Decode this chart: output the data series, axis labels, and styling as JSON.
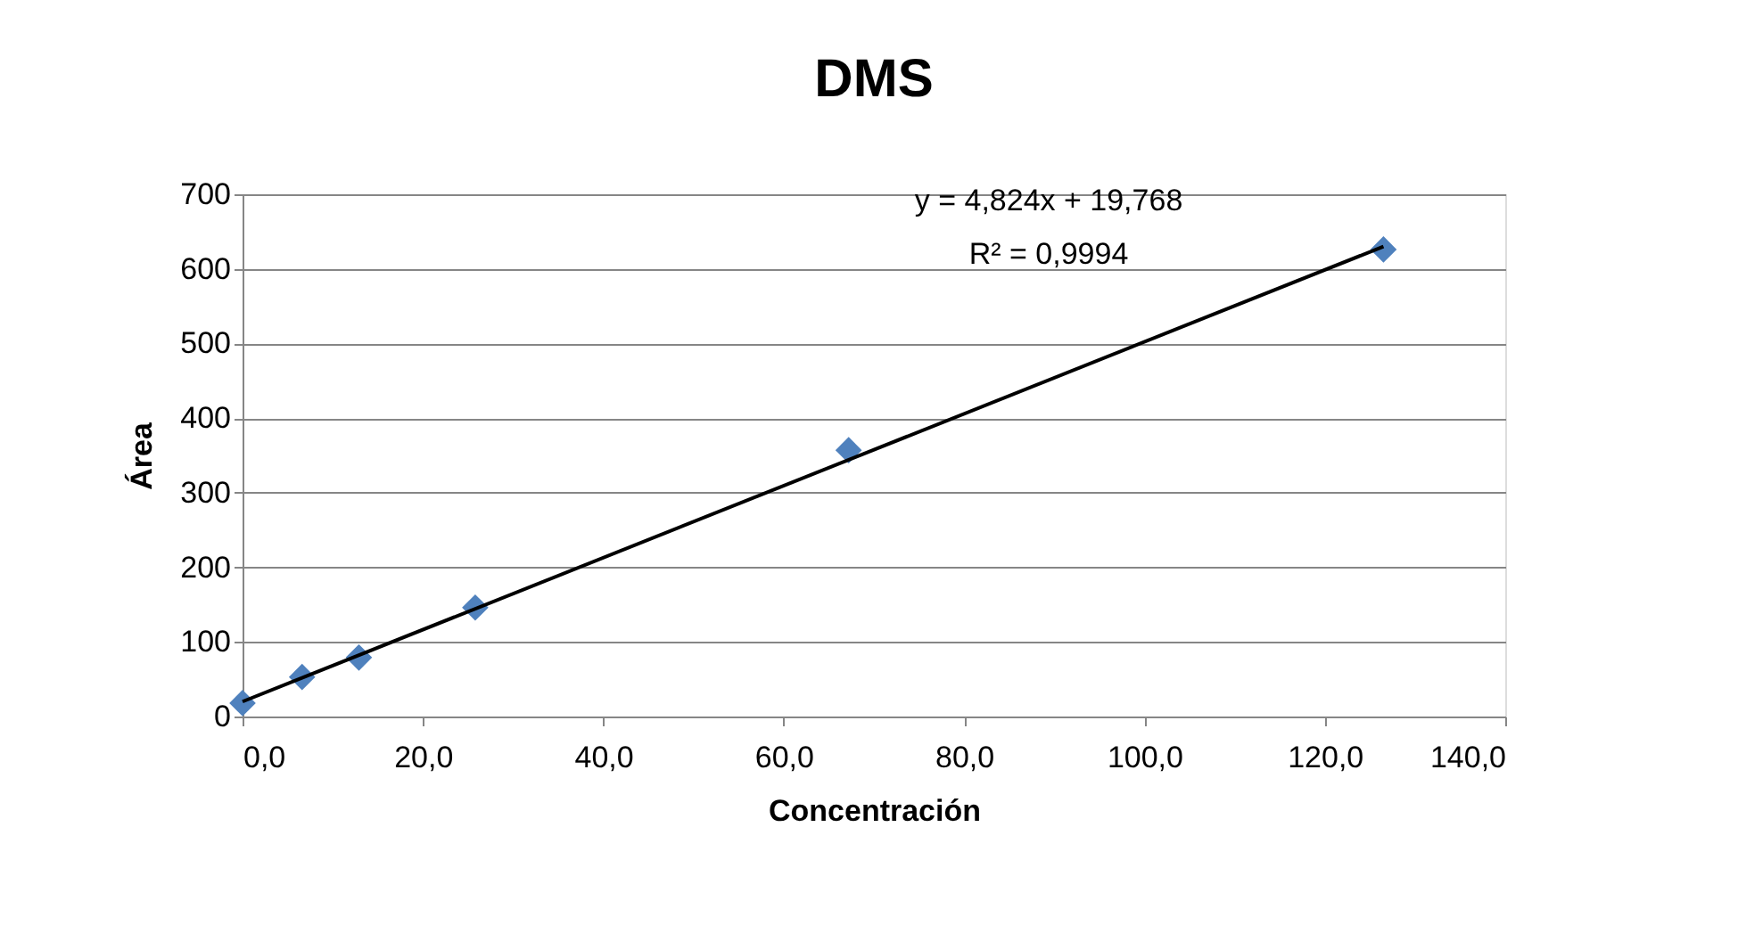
{
  "chart_data": {
    "type": "scatter",
    "title": "DMS",
    "xlabel": "Concentración",
    "ylabel": "Área",
    "x": [
      0,
      6.6,
      12.9,
      25.8,
      67.2,
      126.5
    ],
    "series": [
      {
        "color": "#4f81bd",
        "marker": "diamond",
        "values": [
          18,
          53,
          79,
          146,
          357,
          626
        ]
      },
      {
        "type": "line",
        "color": "#000000",
        "x": [
          0,
          126.5
        ],
        "values": [
          20,
          630
        ],
        "line_style": "solid",
        "marker": "none"
      }
    ],
    "xlim": [
      0,
      140
    ],
    "ylim": [
      0,
      700
    ],
    "xticks": [
      {
        "value": 0,
        "label": "0,0"
      },
      {
        "value": 20,
        "label": "20,0"
      },
      {
        "value": 40,
        "label": "40,0"
      },
      {
        "value": 60,
        "label": "60,0"
      },
      {
        "value": 80,
        "label": "80,0"
      },
      {
        "value": 100,
        "label": "100,0"
      },
      {
        "value": 120,
        "label": "120,0"
      },
      {
        "value": 140,
        "label": "140,0"
      }
    ],
    "yticks": [
      0,
      100,
      200,
      300,
      400,
      500,
      600,
      700
    ],
    "grid": "y",
    "annotations": [
      "y = 4,824x + 19,768",
      "R² = 0,9994"
    ]
  }
}
